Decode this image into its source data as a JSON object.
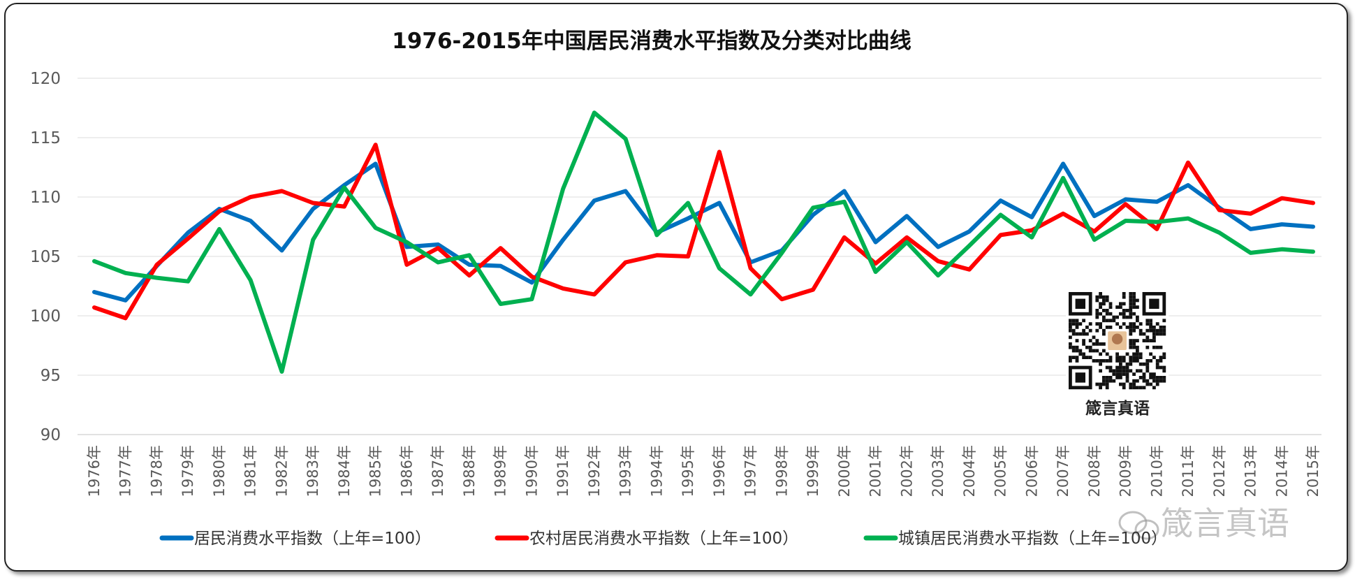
{
  "chart_data": {
    "type": "line",
    "title": "1976-2015年中国居民消费水平指数及分类对比曲线",
    "categories": [
      "1976年",
      "1977年",
      "1978年",
      "1979年",
      "1980年",
      "1981年",
      "1982年",
      "1983年",
      "1984年",
      "1985年",
      "1986年",
      "1987年",
      "1988年",
      "1989年",
      "1990年",
      "1991年",
      "1992年",
      "1993年",
      "1994年",
      "1995年",
      "1996年",
      "1997年",
      "1998年",
      "1999年",
      "2000年",
      "2001年",
      "2002年",
      "2003年",
      "2004年",
      "2005年",
      "2006年",
      "2007年",
      "2008年",
      "2009年",
      "2010年",
      "2011年",
      "2012年",
      "2013年",
      "2014年",
      "2015年"
    ],
    "ylim": [
      90,
      120
    ],
    "yticks": [
      "90",
      "95",
      "100",
      "105",
      "110",
      "115",
      "120"
    ],
    "grid": true,
    "legend_position": "bottom",
    "series": [
      {
        "name": "居民消费水平指数（上年=100）",
        "color": "#0070C0",
        "values": [
          102.0,
          101.3,
          104.2,
          107.0,
          109.0,
          108.0,
          105.5,
          109.0,
          111.0,
          112.8,
          105.8,
          106.0,
          104.3,
          104.2,
          102.8,
          106.4,
          109.7,
          110.5,
          107.0,
          108.2,
          109.5,
          104.5,
          105.5,
          108.5,
          110.5,
          106.2,
          108.4,
          105.8,
          107.1,
          109.7,
          108.3,
          112.8,
          108.4,
          109.8,
          109.6,
          111.0,
          109.1,
          107.3,
          107.7,
          107.5
        ]
      },
      {
        "name": "农村居民消费水平指数（上年=100）",
        "color": "#FF0000",
        "values": [
          100.7,
          99.8,
          104.3,
          106.5,
          108.8,
          110.0,
          110.5,
          109.5,
          109.2,
          114.4,
          104.3,
          105.7,
          103.4,
          105.7,
          103.3,
          102.3,
          101.8,
          104.5,
          105.1,
          105.0,
          113.8,
          104.0,
          101.4,
          102.2,
          106.6,
          104.4,
          106.6,
          104.6,
          103.9,
          106.8,
          107.2,
          108.6,
          107.1,
          109.4,
          107.3,
          112.9,
          108.9,
          108.6,
          109.9,
          109.5
        ]
      },
      {
        "name": "城镇居民消费水平指数（上年=100）",
        "color": "#00B050",
        "values": [
          104.6,
          103.6,
          103.2,
          102.9,
          107.3,
          103.0,
          95.3,
          106.4,
          110.8,
          107.4,
          106.2,
          104.5,
          105.1,
          101.0,
          101.4,
          110.7,
          117.1,
          114.9,
          106.8,
          109.5,
          104.0,
          101.8,
          105.3,
          109.1,
          109.6,
          103.7,
          106.2,
          103.4,
          105.9,
          108.5,
          106.6,
          111.6,
          106.4,
          108.0,
          107.9,
          108.2,
          107.0,
          105.3,
          105.6,
          105.4
        ]
      }
    ]
  },
  "qr_caption": "箴言真语",
  "watermark": {
    "text": "箴言真语",
    "icon": "wechat-icon"
  }
}
